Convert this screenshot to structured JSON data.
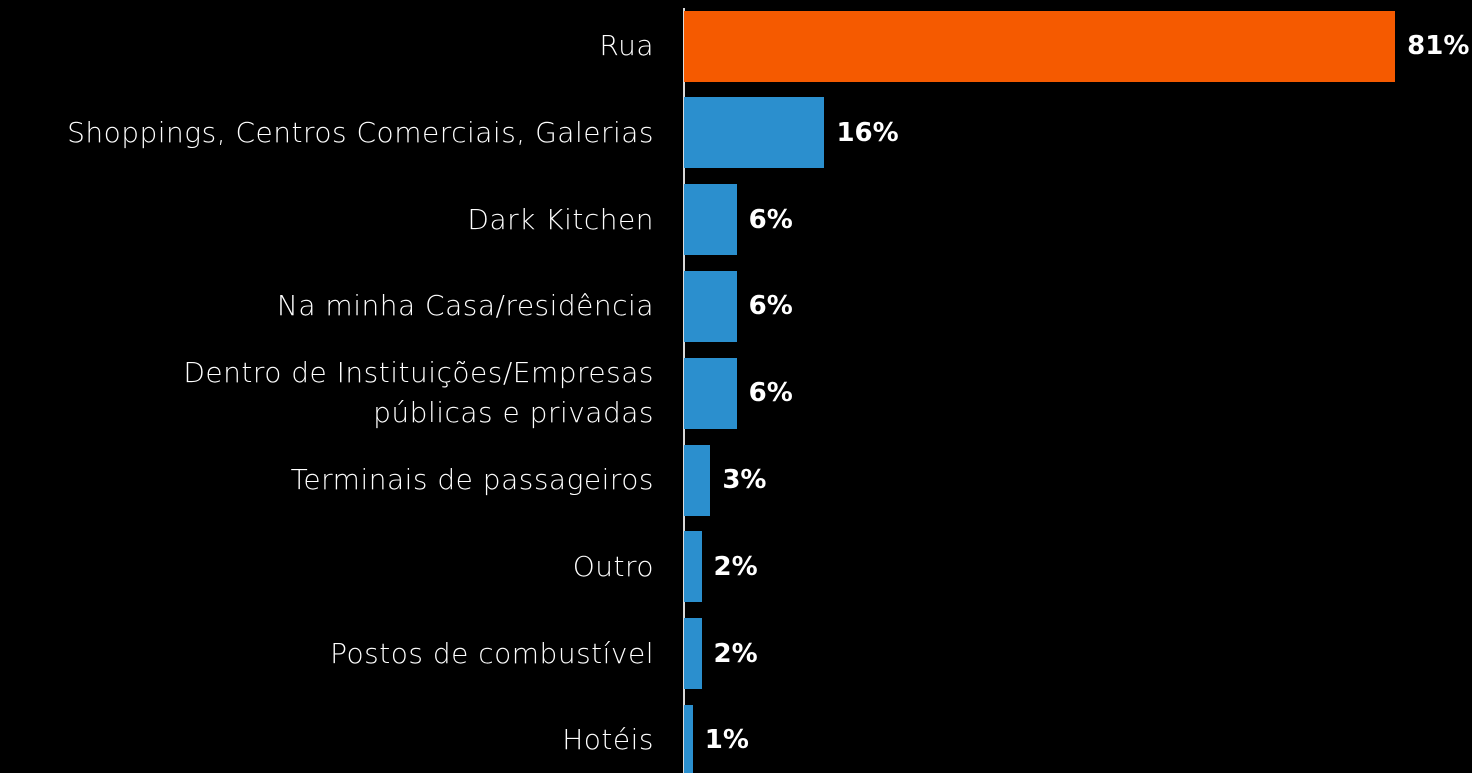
{
  "chart_data": {
    "type": "hbar",
    "categories": [
      "Rua",
      "Shoppings, Centros Comerciais, Galerias",
      "Dark Kitchen",
      "Na minha Casa/residência",
      "Dentro de Instituições/Empresas\npúblicas e privadas",
      "Terminais de passageiros",
      "Outro",
      "Postos de combustível",
      "Hotéis"
    ],
    "values": [
      81,
      16,
      6,
      6,
      6,
      3,
      2,
      2,
      1
    ],
    "value_labels": [
      "81%",
      "16%",
      "6%",
      "6%",
      "6%",
      "3%",
      "2%",
      "2%",
      "1%"
    ],
    "colors": [
      "#f55a00",
      "#2b8fce",
      "#2b8fce",
      "#2b8fce",
      "#2b8fce",
      "#2b8fce",
      "#2b8fce",
      "#2b8fce",
      "#2b8fce"
    ]
  }
}
